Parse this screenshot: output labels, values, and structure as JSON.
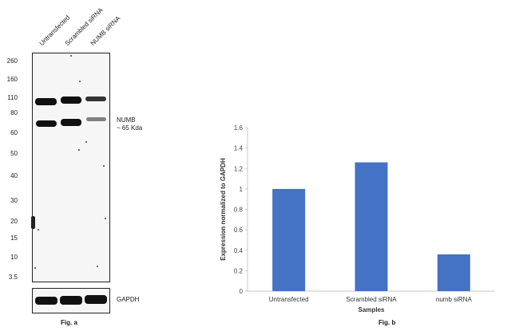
{
  "figure_a": {
    "lanes": [
      "Untransfected",
      "Scrambled siRNA",
      "NUMB siRNA"
    ],
    "mw_markers": [
      "260",
      "160",
      "110",
      "80",
      "60",
      "50",
      "40",
      "30",
      "20",
      "15",
      "10",
      "3.5"
    ],
    "annotation_line1": "NUMB",
    "annotation_line2": "~ 65 Kda",
    "loading_control": "GAPDH",
    "caption": "Fig. a"
  },
  "figure_b": {
    "caption": "Fig. b"
  },
  "chart_data": {
    "type": "bar",
    "categories": [
      "Untransfected",
      "Scrambled siRNA",
      "numb siRNA"
    ],
    "values": [
      1.0,
      1.26,
      0.36
    ],
    "xlabel": "Samples",
    "ylabel": "Expression normalized to GAPDH",
    "ylim": [
      0,
      1.6
    ],
    "yticks": [
      "0",
      "0.2",
      "0.4",
      "0.6",
      "0.8",
      "1",
      "1.2",
      "1.4",
      "1.6"
    ],
    "bar_color": "#4472c4",
    "grid": false
  }
}
